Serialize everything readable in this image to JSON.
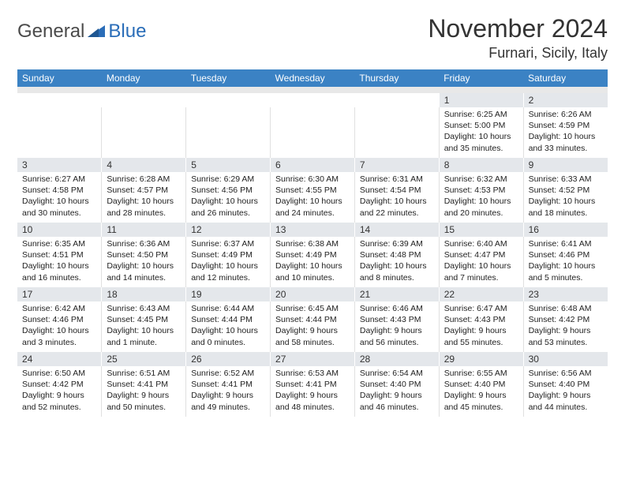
{
  "logo": {
    "general": "General",
    "blue": "Blue"
  },
  "title": "November 2024",
  "location": "Furnari, Sicily, Italy",
  "colors": {
    "header_bg": "#3b82c4",
    "header_text": "#ffffff",
    "date_bg": "#e4e7eb",
    "spacer_bg": "#e8e8e8",
    "logo_gray": "#4a4a4a",
    "logo_blue": "#2a6db8"
  },
  "day_headers": [
    "Sunday",
    "Monday",
    "Tuesday",
    "Wednesday",
    "Thursday",
    "Friday",
    "Saturday"
  ],
  "weeks": [
    {
      "dates": [
        "",
        "",
        "",
        "",
        "",
        "1",
        "2"
      ],
      "cells": [
        {},
        {},
        {},
        {},
        {},
        {
          "sunrise": "Sunrise: 6:25 AM",
          "sunset": "Sunset: 5:00 PM",
          "daylight1": "Daylight: 10 hours",
          "daylight2": "and 35 minutes."
        },
        {
          "sunrise": "Sunrise: 6:26 AM",
          "sunset": "Sunset: 4:59 PM",
          "daylight1": "Daylight: 10 hours",
          "daylight2": "and 33 minutes."
        }
      ]
    },
    {
      "dates": [
        "3",
        "4",
        "5",
        "6",
        "7",
        "8",
        "9"
      ],
      "cells": [
        {
          "sunrise": "Sunrise: 6:27 AM",
          "sunset": "Sunset: 4:58 PM",
          "daylight1": "Daylight: 10 hours",
          "daylight2": "and 30 minutes."
        },
        {
          "sunrise": "Sunrise: 6:28 AM",
          "sunset": "Sunset: 4:57 PM",
          "daylight1": "Daylight: 10 hours",
          "daylight2": "and 28 minutes."
        },
        {
          "sunrise": "Sunrise: 6:29 AM",
          "sunset": "Sunset: 4:56 PM",
          "daylight1": "Daylight: 10 hours",
          "daylight2": "and 26 minutes."
        },
        {
          "sunrise": "Sunrise: 6:30 AM",
          "sunset": "Sunset: 4:55 PM",
          "daylight1": "Daylight: 10 hours",
          "daylight2": "and 24 minutes."
        },
        {
          "sunrise": "Sunrise: 6:31 AM",
          "sunset": "Sunset: 4:54 PM",
          "daylight1": "Daylight: 10 hours",
          "daylight2": "and 22 minutes."
        },
        {
          "sunrise": "Sunrise: 6:32 AM",
          "sunset": "Sunset: 4:53 PM",
          "daylight1": "Daylight: 10 hours",
          "daylight2": "and 20 minutes."
        },
        {
          "sunrise": "Sunrise: 6:33 AM",
          "sunset": "Sunset: 4:52 PM",
          "daylight1": "Daylight: 10 hours",
          "daylight2": "and 18 minutes."
        }
      ]
    },
    {
      "dates": [
        "10",
        "11",
        "12",
        "13",
        "14",
        "15",
        "16"
      ],
      "cells": [
        {
          "sunrise": "Sunrise: 6:35 AM",
          "sunset": "Sunset: 4:51 PM",
          "daylight1": "Daylight: 10 hours",
          "daylight2": "and 16 minutes."
        },
        {
          "sunrise": "Sunrise: 6:36 AM",
          "sunset": "Sunset: 4:50 PM",
          "daylight1": "Daylight: 10 hours",
          "daylight2": "and 14 minutes."
        },
        {
          "sunrise": "Sunrise: 6:37 AM",
          "sunset": "Sunset: 4:49 PM",
          "daylight1": "Daylight: 10 hours",
          "daylight2": "and 12 minutes."
        },
        {
          "sunrise": "Sunrise: 6:38 AM",
          "sunset": "Sunset: 4:49 PM",
          "daylight1": "Daylight: 10 hours",
          "daylight2": "and 10 minutes."
        },
        {
          "sunrise": "Sunrise: 6:39 AM",
          "sunset": "Sunset: 4:48 PM",
          "daylight1": "Daylight: 10 hours",
          "daylight2": "and 8 minutes."
        },
        {
          "sunrise": "Sunrise: 6:40 AM",
          "sunset": "Sunset: 4:47 PM",
          "daylight1": "Daylight: 10 hours",
          "daylight2": "and 7 minutes."
        },
        {
          "sunrise": "Sunrise: 6:41 AM",
          "sunset": "Sunset: 4:46 PM",
          "daylight1": "Daylight: 10 hours",
          "daylight2": "and 5 minutes."
        }
      ]
    },
    {
      "dates": [
        "17",
        "18",
        "19",
        "20",
        "21",
        "22",
        "23"
      ],
      "cells": [
        {
          "sunrise": "Sunrise: 6:42 AM",
          "sunset": "Sunset: 4:46 PM",
          "daylight1": "Daylight: 10 hours",
          "daylight2": "and 3 minutes."
        },
        {
          "sunrise": "Sunrise: 6:43 AM",
          "sunset": "Sunset: 4:45 PM",
          "daylight1": "Daylight: 10 hours",
          "daylight2": "and 1 minute."
        },
        {
          "sunrise": "Sunrise: 6:44 AM",
          "sunset": "Sunset: 4:44 PM",
          "daylight1": "Daylight: 10 hours",
          "daylight2": "and 0 minutes."
        },
        {
          "sunrise": "Sunrise: 6:45 AM",
          "sunset": "Sunset: 4:44 PM",
          "daylight1": "Daylight: 9 hours",
          "daylight2": "and 58 minutes."
        },
        {
          "sunrise": "Sunrise: 6:46 AM",
          "sunset": "Sunset: 4:43 PM",
          "daylight1": "Daylight: 9 hours",
          "daylight2": "and 56 minutes."
        },
        {
          "sunrise": "Sunrise: 6:47 AM",
          "sunset": "Sunset: 4:43 PM",
          "daylight1": "Daylight: 9 hours",
          "daylight2": "and 55 minutes."
        },
        {
          "sunrise": "Sunrise: 6:48 AM",
          "sunset": "Sunset: 4:42 PM",
          "daylight1": "Daylight: 9 hours",
          "daylight2": "and 53 minutes."
        }
      ]
    },
    {
      "dates": [
        "24",
        "25",
        "26",
        "27",
        "28",
        "29",
        "30"
      ],
      "cells": [
        {
          "sunrise": "Sunrise: 6:50 AM",
          "sunset": "Sunset: 4:42 PM",
          "daylight1": "Daylight: 9 hours",
          "daylight2": "and 52 minutes."
        },
        {
          "sunrise": "Sunrise: 6:51 AM",
          "sunset": "Sunset: 4:41 PM",
          "daylight1": "Daylight: 9 hours",
          "daylight2": "and 50 minutes."
        },
        {
          "sunrise": "Sunrise: 6:52 AM",
          "sunset": "Sunset: 4:41 PM",
          "daylight1": "Daylight: 9 hours",
          "daylight2": "and 49 minutes."
        },
        {
          "sunrise": "Sunrise: 6:53 AM",
          "sunset": "Sunset: 4:41 PM",
          "daylight1": "Daylight: 9 hours",
          "daylight2": "and 48 minutes."
        },
        {
          "sunrise": "Sunrise: 6:54 AM",
          "sunset": "Sunset: 4:40 PM",
          "daylight1": "Daylight: 9 hours",
          "daylight2": "and 46 minutes."
        },
        {
          "sunrise": "Sunrise: 6:55 AM",
          "sunset": "Sunset: 4:40 PM",
          "daylight1": "Daylight: 9 hours",
          "daylight2": "and 45 minutes."
        },
        {
          "sunrise": "Sunrise: 6:56 AM",
          "sunset": "Sunset: 4:40 PM",
          "daylight1": "Daylight: 9 hours",
          "daylight2": "and 44 minutes."
        }
      ]
    }
  ]
}
